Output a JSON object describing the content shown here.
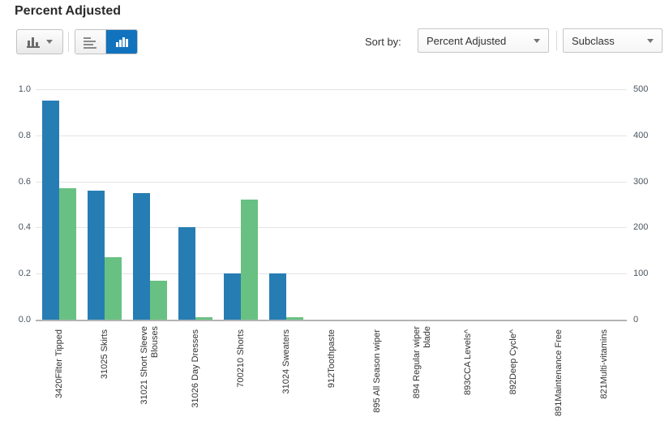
{
  "header": {
    "title": "Percent Adjusted"
  },
  "toolbar": {
    "chart_type_button": {
      "icon": "bar-chart-icon",
      "caret": "caret-down-icon"
    },
    "view_toggle": [
      {
        "icon": "horizontal-bar-chart-icon",
        "selected": false
      },
      {
        "icon": "vertical-bar-chart-icon",
        "selected": true
      }
    ],
    "sort_by_label": "Sort by:",
    "sort_primary": "Percent Adjusted",
    "sort_secondary": "Subclass",
    "dropdown_caret": "caret-down-icon"
  },
  "colors": {
    "series_blue": "#267db3",
    "series_green": "#68c182",
    "selected_toggle": "#1173bd",
    "gridline": "#e4e4e4",
    "axis_line": "#b3b3b3"
  },
  "chart_data": {
    "type": "bar",
    "title": "Percent Adjusted",
    "legend": "none",
    "grid": true,
    "bar_value_axis": "left",
    "categories": [
      "3420Filter Tipped",
      "31025 Skirts",
      "31021 Short Sleeve\nBlouses",
      "31026 Day Dresses",
      "700210 Shorts",
      "31024 Sweaters",
      "912Toothpaste",
      "895 All Season wiper",
      "894 Regular wiper\nblade",
      "893CCA Levels^",
      "892Deep Cycle^",
      "891Maintenance Free",
      "821Multi-vitamins"
    ],
    "series": [
      {
        "name": "blue",
        "color": "#267db3",
        "values": [
          0.95,
          0.56,
          0.55,
          0.4,
          0.2,
          0.2,
          0,
          0,
          0,
          0,
          0,
          0,
          0
        ]
      },
      {
        "name": "green",
        "color": "#68c182",
        "values": [
          0.57,
          0.27,
          0.17,
          0.01,
          0.52,
          0.01,
          0,
          0,
          0,
          0,
          0,
          0,
          0
        ]
      }
    ],
    "left_axis": {
      "range": [
        0,
        1
      ],
      "ticks_top_to_bottom": [
        "1.0",
        "0.8",
        "0.6",
        "0.4",
        "0.2",
        "0.0"
      ]
    },
    "right_axis": {
      "range": [
        0,
        500
      ],
      "ticks_top_to_bottom": [
        "500",
        "400",
        "300",
        "200",
        "100",
        "0"
      ]
    }
  }
}
